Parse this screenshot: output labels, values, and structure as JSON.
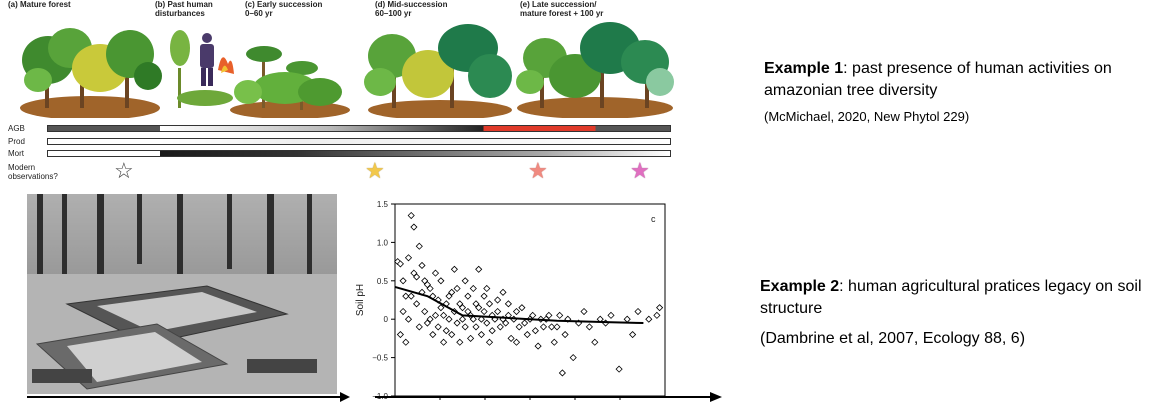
{
  "figure_top": {
    "stages": [
      {
        "label": "(a) Mature forest"
      },
      {
        "label": "(b) Past human\ndisturbances"
      },
      {
        "label": "(c) Early succession\n0–60 yr"
      },
      {
        "label": "(d) Mid-succession\n60–100 yr"
      },
      {
        "label": "(e) Late succession/\nmature forest + 100 yr"
      }
    ],
    "row_labels": [
      "AGB",
      "Prod",
      "Mort",
      "Modern\nobservations?"
    ],
    "star_colors": [
      "#ffffff",
      "#f2c84b",
      "#f08a80",
      "#e06fc0"
    ]
  },
  "examples": [
    {
      "title": "Example 1",
      "text": ": past presence of human activities on amazonian tree diversity",
      "ref": "(McMichael, 2020, New Phytol 229)"
    },
    {
      "title": "Example 2",
      "text": ": human agricultural pratices legacy on soil structure",
      "ref": "(Dambrine et al, 2007, Ecology 88, 6)"
    }
  ],
  "chart_data": {
    "type": "scatter",
    "ylabel": "Soil pH",
    "panel_label": "c",
    "ylim": [
      -1.0,
      1.5
    ],
    "yticks": [
      "1.5",
      "1.0",
      "0.5",
      "0",
      "−0.5",
      "−1.0"
    ],
    "xlim": [
      0,
      100
    ],
    "trend": {
      "x": [
        0,
        12,
        25,
        40,
        60,
        80,
        92
      ],
      "y": [
        0.42,
        0.3,
        0.05,
        0.02,
        -0.02,
        -0.04,
        -0.05
      ]
    },
    "points": {
      "x": [
        1,
        2,
        2,
        3,
        3,
        4,
        4,
        5,
        5,
        6,
        6,
        7,
        7,
        8,
        8,
        9,
        9,
        10,
        10,
        11,
        11,
        12,
        12,
        13,
        13,
        14,
        14,
        15,
        15,
        16,
        16,
        17,
        17,
        18,
        18,
        19,
        19,
        20,
        20,
        21,
        21,
        22,
        22,
        23,
        23,
        24,
        24,
        25,
        25,
        26,
        26,
        27,
        27,
        28,
        28,
        29,
        29,
        30,
        30,
        31,
        31,
        32,
        32,
        33,
        33,
        34,
        34,
        35,
        35,
        36,
        36,
        37,
        38,
        38,
        39,
        40,
        40,
        41,
        42,
        42,
        43,
        44,
        45,
        45,
        46,
        47,
        48,
        49,
        50,
        51,
        52,
        53,
        54,
        55,
        56,
        57,
        58,
        59,
        60,
        61,
        62,
        63,
        64,
        66,
        68,
        70,
        72,
        74,
        76,
        78,
        80,
        83,
        86,
        88,
        90,
        94,
        97,
        98
      ],
      "y": [
        0.75,
        0.72,
        -0.2,
        0.5,
        0.1,
        0.3,
        -0.3,
        0.8,
        0.0,
        1.35,
        0.3,
        1.2,
        0.6,
        0.55,
        0.2,
        0.95,
        -0.1,
        0.7,
        0.35,
        0.5,
        0.1,
        0.45,
        -0.05,
        0.4,
        0.0,
        0.3,
        -0.2,
        0.6,
        0.05,
        0.25,
        -0.1,
        0.15,
        0.5,
        -0.3,
        0.05,
        0.2,
        -0.15,
        0.3,
        0.0,
        0.35,
        -0.2,
        0.1,
        0.65,
        -0.05,
        0.4,
        0.2,
        -0.3,
        0.0,
        0.15,
        0.5,
        -0.1,
        0.1,
        0.3,
        -0.25,
        0.05,
        0.4,
        0.0,
        0.2,
        -0.1,
        0.65,
        0.15,
        -0.2,
        0.0,
        0.3,
        0.1,
        -0.05,
        0.4,
        0.2,
        -0.3,
        0.05,
        -0.15,
        0.0,
        0.25,
        0.1,
        -0.1,
        0.0,
        0.35,
        -0.05,
        0.2,
        0.05,
        -0.25,
        0.0,
        0.1,
        -0.3,
        -0.1,
        0.15,
        -0.05,
        -0.2,
        0.0,
        0.05,
        -0.15,
        -0.35,
        0.0,
        -0.1,
        0.0,
        0.05,
        -0.1,
        -0.3,
        -0.1,
        0.05,
        -0.7,
        -0.2,
        0.0,
        -0.5,
        -0.05,
        0.1,
        -0.1,
        -0.3,
        0.0,
        -0.05,
        0.05,
        -0.65,
        0.0,
        -0.2,
        0.1,
        0.0,
        0.05,
        0.15
      ]
    }
  }
}
